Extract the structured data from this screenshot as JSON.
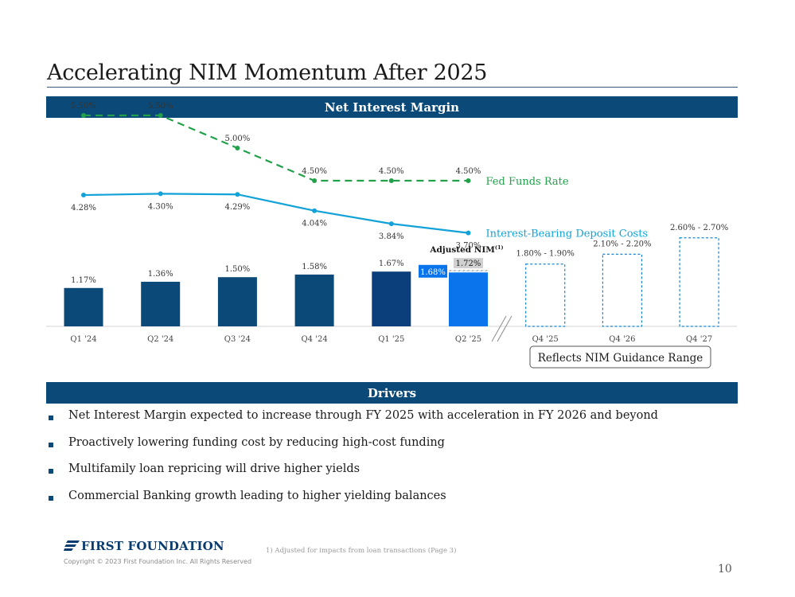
{
  "slide": {
    "title": "Accelerating NIM Momentum After 2025",
    "section_chart": "Net Interest Margin",
    "section_drivers": "Drivers",
    "page_number": "10"
  },
  "chart_data": {
    "type": "bar",
    "title": "Net Interest Margin",
    "categories": [
      "Q1 '24",
      "Q2 '24",
      "Q3 '24",
      "Q4 '24",
      "Q1 '25",
      "Q2 '25"
    ],
    "values": [
      1.17,
      1.36,
      1.5,
      1.58,
      1.67,
      1.68
    ],
    "value_labels": [
      "1.17%",
      "1.36%",
      "1.50%",
      "1.58%",
      "1.67%",
      "1.68%"
    ],
    "ylim": [
      0,
      3.0
    ],
    "colors": {
      "bar": "#0b4a78",
      "bar_q1_25": "#0a3f7c",
      "bar_q2_25": "#0a74ec",
      "adjusted_hatch": "#7f7f7f",
      "fed_funds": "#22a04a",
      "deposit_costs": "#12a2d8",
      "guidance_border": "#1a86d0"
    },
    "adjusted": {
      "label": "Adjusted NIM",
      "superscript": "(1)",
      "value": 1.72,
      "value_label": "1.72%"
    },
    "guidance": [
      {
        "category": "Q4 '25",
        "low": 1.8,
        "high": 1.9,
        "label": "1.80% - 1.90%"
      },
      {
        "category": "Q4 '26",
        "low": 2.1,
        "high": 2.2,
        "label": "2.10% - 2.20%"
      },
      {
        "category": "Q4 '27",
        "low": 2.6,
        "high": 2.7,
        "label": "2.60% - 2.70%"
      }
    ],
    "guidance_note": "Reflects NIM Guidance Range",
    "lines": [
      {
        "name": "Fed Funds Rate",
        "style": "dashed",
        "values": [
          5.5,
          5.5,
          5.0,
          4.5,
          4.5,
          4.5
        ],
        "labels": [
          "5.50%",
          "5.50%",
          "5.00%",
          "4.50%",
          "4.50%",
          "4.50%"
        ]
      },
      {
        "name": "Interest-Bearing Deposit Costs",
        "style": "solid",
        "values": [
          4.28,
          4.3,
          4.29,
          4.04,
          3.84,
          3.7
        ],
        "labels": [
          "4.28%",
          "4.30%",
          "4.29%",
          "4.04%",
          "3.84%",
          "3.70%"
        ]
      }
    ]
  },
  "drivers": [
    "Net Interest Margin expected to increase through FY 2025 with acceleration in FY 2026 and beyond",
    "Proactively lowering funding cost by reducing high-cost funding",
    "Multifamily loan repricing will drive higher yields",
    "Commercial Banking growth leading to higher yielding balances"
  ],
  "footer": {
    "logo_text": "FIRST FOUNDATION",
    "copyright": "Copyright © 2023 First Foundation Inc. All Rights Reserved",
    "footnote": "1)     Adjusted for impacts from loan transactions (Page 3)"
  }
}
